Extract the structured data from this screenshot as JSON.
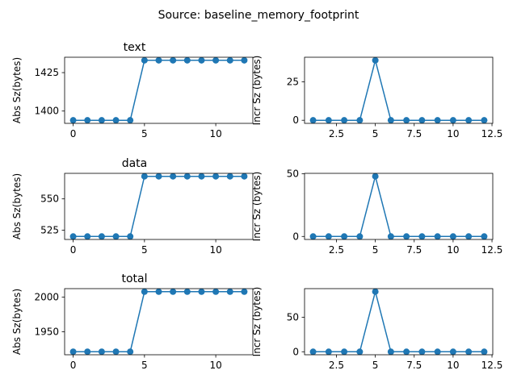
{
  "figure": {
    "suptitle": "Source: baseline_memory_footprint"
  },
  "chart_data": [
    {
      "type": "line",
      "title": "text",
      "xlabel": "",
      "ylabel": "Abs Sz(bytes)",
      "x": [
        0,
        1,
        2,
        3,
        4,
        5,
        6,
        7,
        8,
        9,
        10,
        11,
        12
      ],
      "y": [
        1394,
        1394,
        1394,
        1394,
        1394,
        1433,
        1433,
        1433,
        1433,
        1433,
        1433,
        1433,
        1433
      ],
      "xlim": [
        -0.6,
        12.6
      ],
      "ylim": [
        1392,
        1435
      ],
      "xticks": [
        0,
        5,
        10
      ],
      "yticks": [
        1400,
        1425
      ],
      "grid": false,
      "color": "#1f77b4"
    },
    {
      "type": "line",
      "title": "",
      "xlabel": "",
      "ylabel": "Incr Sz (bytes)",
      "x": [
        1,
        2,
        3,
        4,
        5,
        6,
        7,
        8,
        9,
        10,
        11,
        12
      ],
      "y": [
        0,
        0,
        0,
        0,
        39,
        0,
        0,
        0,
        0,
        0,
        0,
        0
      ],
      "xlim": [
        0.45,
        12.55
      ],
      "ylim": [
        -2,
        41
      ],
      "xticks": [
        2.5,
        5.0,
        7.5,
        10.0,
        12.5
      ],
      "yticks": [
        0,
        25
      ],
      "grid": false,
      "color": "#1f77b4"
    },
    {
      "type": "line",
      "title": "data",
      "xlabel": "",
      "ylabel": "Abs Sz(bytes)",
      "x": [
        0,
        1,
        2,
        3,
        4,
        5,
        6,
        7,
        8,
        9,
        10,
        11,
        12
      ],
      "y": [
        520,
        520,
        520,
        520,
        520,
        568,
        568,
        568,
        568,
        568,
        568,
        568,
        568
      ],
      "xlim": [
        -0.6,
        12.6
      ],
      "ylim": [
        517.6,
        570.4
      ],
      "xticks": [
        0,
        5,
        10
      ],
      "yticks": [
        525,
        550
      ],
      "grid": false,
      "color": "#1f77b4"
    },
    {
      "type": "line",
      "title": "",
      "xlabel": "",
      "ylabel": "Incr Sz (bytes)",
      "x": [
        1,
        2,
        3,
        4,
        5,
        6,
        7,
        8,
        9,
        10,
        11,
        12
      ],
      "y": [
        0,
        0,
        0,
        0,
        48,
        0,
        0,
        0,
        0,
        0,
        0,
        0
      ],
      "xlim": [
        0.45,
        12.55
      ],
      "ylim": [
        -2.4,
        50.4
      ],
      "xticks": [
        2.5,
        5.0,
        7.5,
        10.0,
        12.5
      ],
      "yticks": [
        0,
        50
      ],
      "grid": false,
      "color": "#1f77b4"
    },
    {
      "type": "line",
      "title": "total",
      "xlabel": "",
      "ylabel": "Abs Sz(bytes)",
      "x": [
        0,
        1,
        2,
        3,
        4,
        5,
        6,
        7,
        8,
        9,
        10,
        11,
        12
      ],
      "y": [
        1921,
        1921,
        1921,
        1921,
        1921,
        2008,
        2008,
        2008,
        2008,
        2008,
        2008,
        2008,
        2008
      ],
      "xlim": [
        -0.6,
        12.6
      ],
      "ylim": [
        1916.6,
        2012.4
      ],
      "xticks": [
        0,
        5,
        10
      ],
      "yticks": [
        1950,
        2000
      ],
      "grid": false,
      "color": "#1f77b4"
    },
    {
      "type": "line",
      "title": "",
      "xlabel": "",
      "ylabel": "Incr Sz (bytes)",
      "x": [
        1,
        2,
        3,
        4,
        5,
        6,
        7,
        8,
        9,
        10,
        11,
        12
      ],
      "y": [
        0,
        0,
        0,
        0,
        87,
        0,
        0,
        0,
        0,
        0,
        0,
        0
      ],
      "xlim": [
        0.45,
        12.55
      ],
      "ylim": [
        -4.35,
        91.35
      ],
      "xticks": [
        2.5,
        5.0,
        7.5,
        10.0,
        12.5
      ],
      "yticks": [
        0,
        50
      ],
      "grid": false,
      "color": "#1f77b4"
    }
  ]
}
